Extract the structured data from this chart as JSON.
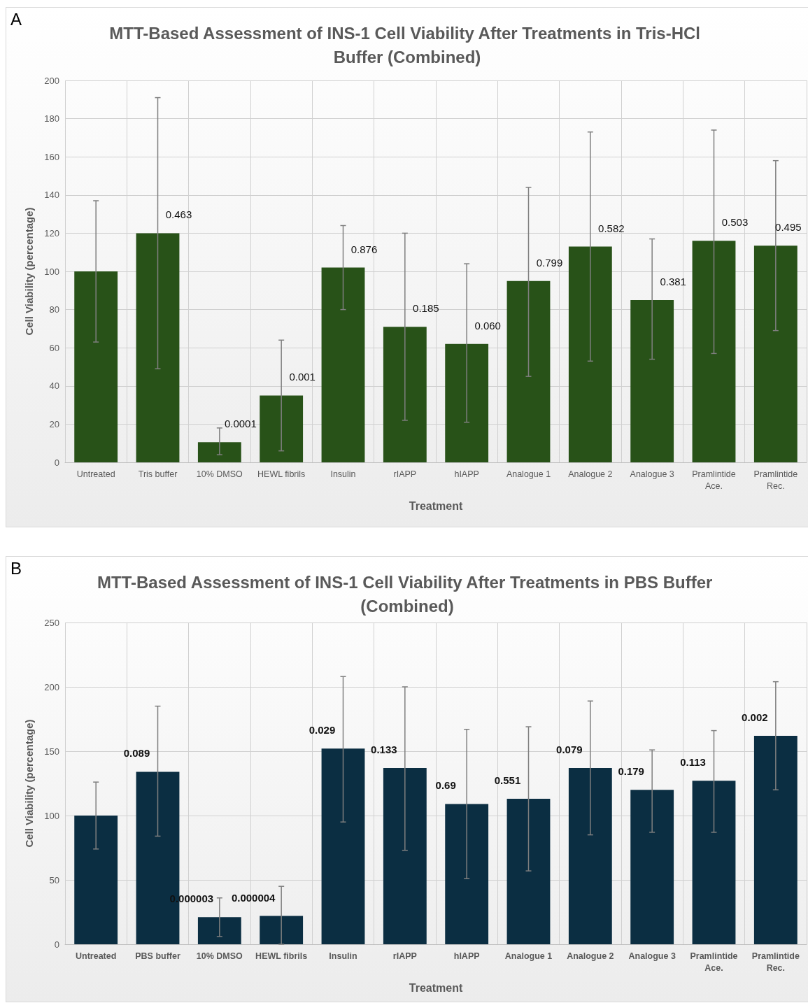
{
  "chart_data": [
    {
      "type": "bar",
      "title": "MTT-Based Assessment of INS-1 Cell Viability After Treatments in Tris-HCl Buffer (Combined)",
      "xlabel": "Treatment",
      "ylabel": "Cell Viability (percentage)",
      "categories": [
        "Untreated",
        "Tris buffer",
        "10% DMSO",
        "HEWL fibrils",
        "Insulin",
        "rIAPP",
        "hIAPP",
        "Analogue 1",
        "Analogue 2",
        "Analogue 3",
        "Pramlintide\nAce.",
        "Pramlintide\nRec."
      ],
      "series": [
        {
          "color": "#285218",
          "values": [
            100,
            120,
            10.5,
            35,
            102,
            71,
            62,
            95,
            113,
            85,
            116,
            113.5
          ],
          "errors": [
            [
              63,
              137
            ],
            [
              49,
              191
            ],
            [
              4,
              18
            ],
            [
              6,
              64
            ],
            [
              80,
              124
            ],
            [
              22,
              120
            ],
            [
              21,
              104
            ],
            [
              45,
              144
            ],
            [
              53,
              173
            ],
            [
              54,
              117
            ],
            [
              57,
              174
            ],
            [
              69,
              158
            ]
          ]
        }
      ],
      "ylim": [
        0,
        200
      ],
      "yticks": [
        0,
        20,
        40,
        60,
        80,
        100,
        120,
        140,
        160,
        180,
        200
      ],
      "grid": true,
      "annotations": [
        "A",
        {
          "text": "0.463",
          "x": "Tris buffer",
          "y": 120
        },
        {
          "text": "0.0001",
          "x": "10% DMSO",
          "y": 10.5
        },
        {
          "text": "0.001",
          "x": "HEWL fibrils",
          "y": 35
        },
        {
          "text": "0.876",
          "x": "Insulin",
          "y": 102
        },
        {
          "text": "0.185",
          "x": "rIAPP",
          "y": 71
        },
        {
          "text": "0.060",
          "x": "hIAPP",
          "y": 62
        },
        {
          "text": "0.799",
          "x": "Analogue 1",
          "y": 95
        },
        {
          "text": "0.582",
          "x": "Analogue 2",
          "y": 113
        },
        {
          "text": "0.381",
          "x": "Analogue 3",
          "y": 85
        },
        {
          "text": "0.503",
          "x": "Pramlintide\nAce.",
          "y": 116
        },
        {
          "text": "0.495",
          "x": "Pramlintide\nRec.",
          "y": 113.5
        }
      ]
    },
    {
      "type": "bar",
      "title": "MTT-Based Assessment of INS-1 Cell Viability After Treatments in PBS Buffer (Combined)",
      "xlabel": "Treatment",
      "ylabel": "Cell Viability (percentage)",
      "categories": [
        "Untreated",
        "PBS buffer",
        "10% DMSO",
        "HEWL fibrils",
        "Insulin",
        "rIAPP",
        "hIAPP",
        "Analogue 1",
        "Analogue 2",
        "Analogue 3",
        "Pramlintide\nAce.",
        "Pramlintide\nRec."
      ],
      "series": [
        {
          "color": "#0b2e42",
          "values": [
            100,
            134,
            21,
            22,
            152,
            137,
            109,
            113,
            137,
            120,
            127,
            162
          ],
          "errors": [
            [
              74,
              126
            ],
            [
              84,
              185
            ],
            [
              6,
              36
            ],
            [
              0,
              45
            ],
            [
              95,
              208
            ],
            [
              73,
              200
            ],
            [
              51,
              167
            ],
            [
              57,
              169
            ],
            [
              85,
              189
            ],
            [
              87,
              151
            ],
            [
              87,
              166
            ],
            [
              120,
              204
            ]
          ]
        }
      ],
      "ylim": [
        0,
        250
      ],
      "yticks": [
        0,
        50,
        100,
        150,
        200,
        250
      ],
      "grid": true,
      "annotations": [
        "B",
        {
          "text": "0.089",
          "x": "PBS buffer",
          "y": 134
        },
        {
          "text": "0.000003",
          "x": "10% DMSO",
          "y": 21
        },
        {
          "text": "0.000004",
          "x": "HEWL fibrils",
          "y": 22
        },
        {
          "text": "0.029",
          "x": "Insulin",
          "y": 152
        },
        {
          "text": "0.133",
          "x": "rIAPP",
          "y": 137
        },
        {
          "text": "0.69",
          "x": "hIAPP",
          "y": 109
        },
        {
          "text": "0.551",
          "x": "Analogue 1",
          "y": 113
        },
        {
          "text": "0.079",
          "x": "Analogue 2",
          "y": 137
        },
        {
          "text": "0.179",
          "x": "Analogue 3",
          "y": 120
        },
        {
          "text": "0.113",
          "x": "Pramlintide\nAce.",
          "y": 127
        },
        {
          "text": "0.002",
          "x": "Pramlintide\nRec.",
          "y": 162
        }
      ]
    }
  ]
}
